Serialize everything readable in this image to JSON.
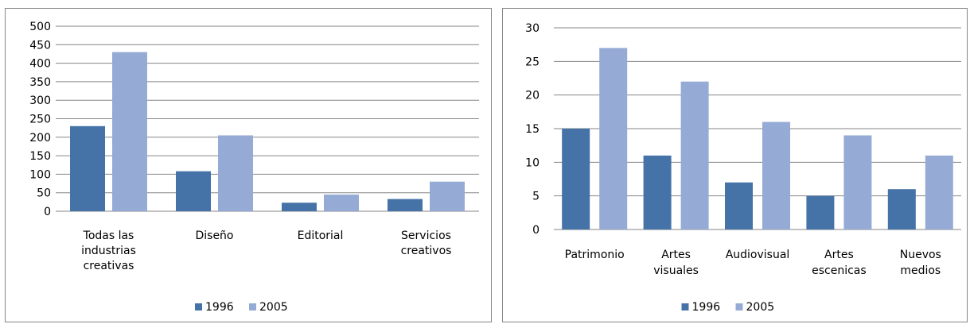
{
  "colors": {
    "series_1996": "#4572A7",
    "series_2005": "#95ABD5",
    "gridline": "#868686"
  },
  "chart_data": [
    {
      "type": "bar",
      "categories": [
        "Todas las industrias creativas",
        "Diseño",
        "Editorial",
        "Servicios creativos"
      ],
      "category_lines": [
        [
          "Todas las",
          "industrias",
          "creativas"
        ],
        [
          "Diseño"
        ],
        [
          "Editorial"
        ],
        [
          "Servicios",
          "creativos"
        ]
      ],
      "series": [
        {
          "name": "1996",
          "values": [
            230,
            108,
            23,
            33
          ]
        },
        {
          "name": "2005",
          "values": [
            430,
            205,
            45,
            80
          ]
        }
      ],
      "ylim": [
        0,
        500
      ],
      "yticks": [
        0,
        50,
        100,
        150,
        200,
        250,
        300,
        350,
        400,
        450,
        500
      ],
      "grid": true,
      "legend_position": "bottom"
    },
    {
      "type": "bar",
      "categories": [
        "Patrimonio",
        "Artes visuales",
        "Audiovisual",
        "Artes escenicas",
        "Nuevos medios"
      ],
      "category_lines": [
        [
          "Patrimonio"
        ],
        [
          "Artes",
          "visuales"
        ],
        [
          "Audiovisual"
        ],
        [
          "Artes",
          "escenicas"
        ],
        [
          "Nuevos",
          "medios"
        ]
      ],
      "series": [
        {
          "name": "1996",
          "values": [
            15,
            11,
            7,
            5,
            6
          ]
        },
        {
          "name": "2005",
          "values": [
            27,
            22,
            16,
            14,
            11
          ]
        }
      ],
      "ylim": [
        0,
        30
      ],
      "yticks": [
        0,
        5,
        10,
        15,
        20,
        25,
        30
      ],
      "grid": true,
      "legend_position": "bottom"
    }
  ]
}
